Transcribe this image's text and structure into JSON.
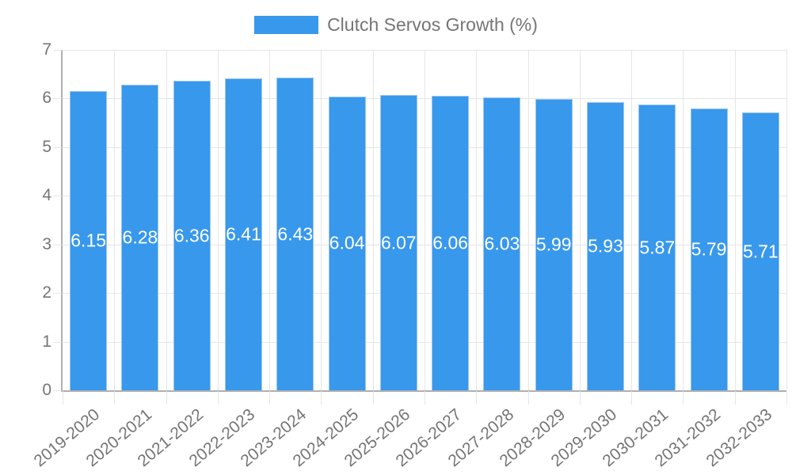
{
  "chart_data": {
    "type": "bar",
    "legend": "Clutch Servos Growth (%)",
    "legend_position": "top-center",
    "categories": [
      "2019-2020",
      "2020-2021",
      "2021-2022",
      "2022-2023",
      "2023-2024",
      "2024-2025",
      "2025-2026",
      "2026-2027",
      "2027-2028",
      "2028-2029",
      "2029-2030",
      "2030-2031",
      "2031-2032",
      "2032-2033"
    ],
    "values": [
      6.15,
      6.28,
      6.36,
      6.41,
      6.43,
      6.04,
      6.07,
      6.06,
      6.03,
      5.99,
      5.93,
      5.87,
      5.79,
      5.71
    ],
    "value_labels": [
      "6.15",
      "6.28",
      "6.36",
      "6.41",
      "6.43",
      "6.04",
      "6.07",
      "6.06",
      "6.03",
      "5.99",
      "5.93",
      "5.87",
      "5.79",
      "5.71"
    ],
    "ylim": [
      0,
      7
    ],
    "yticks": [
      0,
      1,
      2,
      3,
      4,
      5,
      6,
      7
    ],
    "grid": "on",
    "xlabel": "",
    "ylabel": "",
    "colors": {
      "bar": "#3898ec",
      "bar_border": "#9cc6f2",
      "grid": "#e6e6e6",
      "axis": "#b0b0b0",
      "tick_text": "#757575",
      "value_text": "#ffffff"
    }
  }
}
